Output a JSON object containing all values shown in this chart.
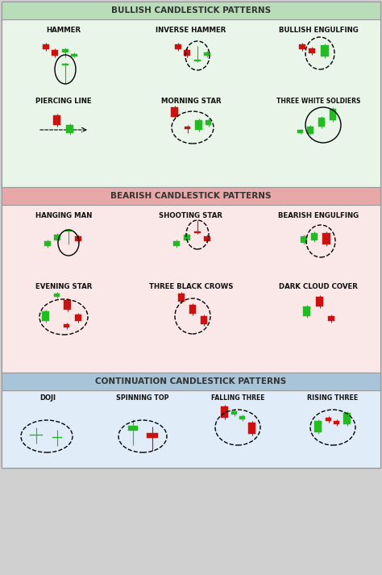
{
  "title_bullish": "BULLISH CANDLESTICK PATTERNS",
  "title_bearish": "BEARISH CANDLESTICK PATTERNS",
  "title_continuation": "CONTINUATION CANDLESTICK PATTERNS",
  "bullish_bg": "#e8f5e8",
  "bearish_bg": "#fae8e8",
  "continuation_bg": "#e0ecf8",
  "header_bullish_bg": "#b8ddb8",
  "header_bearish_bg": "#e8a8a8",
  "header_continuation_bg": "#a8c4d8",
  "green": "#22bb22",
  "red": "#cc1111",
  "border_color": "#888888",
  "bg_gray": "#d0d0d0",
  "section_border": "#999999",
  "white": "#ffffff",
  "label_color": "#111111"
}
